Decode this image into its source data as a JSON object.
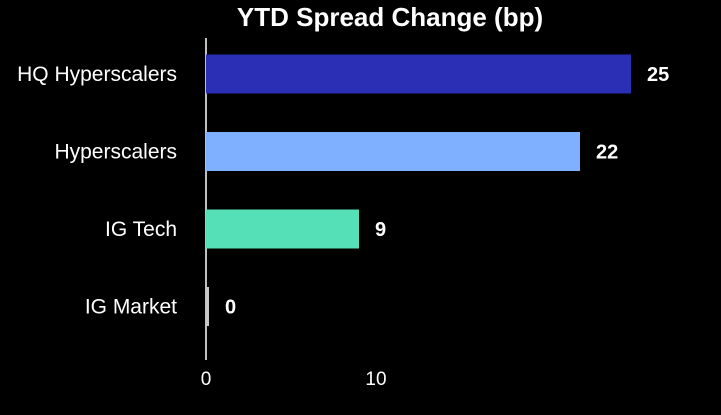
{
  "chart_data": {
    "type": "bar",
    "orientation": "horizontal",
    "title": "YTD Spread Change (bp)",
    "xlabel": "",
    "ylabel": "",
    "categories": [
      "HQ Hyperscalers",
      "Hyperscalers",
      "IG Tech",
      "IG Market"
    ],
    "values": [
      25,
      22,
      9,
      0
    ],
    "colors": [
      "#2B2FB5",
      "#7FB0FF",
      "#55E0B8",
      "#C8C8C8"
    ],
    "xlim": [
      0,
      30
    ],
    "x_ticks": [
      0,
      10
    ],
    "grid": false,
    "legend": "none"
  },
  "colors": {
    "background": "#000000",
    "text": "#ffffff",
    "axis": "#bfbfbf"
  }
}
